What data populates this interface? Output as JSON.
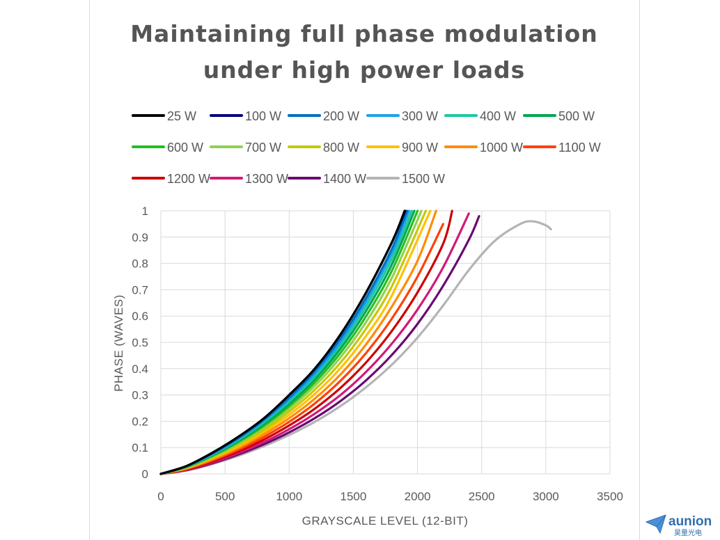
{
  "chart_data": {
    "type": "line",
    "title": [
      "Maintaining full phase modulation",
      "under high power loads"
    ],
    "xlabel": "GRAYSCALE LEVEL (12-BIT)",
    "ylabel": "PHASE (WAVES)",
    "xlim": [
      0,
      3500
    ],
    "ylim": [
      0,
      1
    ],
    "xticks": [
      0,
      500,
      1000,
      1500,
      2000,
      2500,
      3000,
      3500
    ],
    "yticks": [
      0,
      0.1,
      0.2,
      0.3,
      0.4,
      0.5,
      0.6,
      0.7,
      0.8,
      0.9,
      1
    ],
    "xtick_labels": [
      "0",
      "500",
      "1000",
      "1500",
      "2000",
      "2500",
      "3000",
      "3500"
    ],
    "ytick_labels": [
      "0",
      "0.1",
      "0.2",
      "0.3",
      "0.4",
      "0.5",
      "0.6",
      "0.7",
      "0.8",
      "0.9",
      "1"
    ],
    "grid": true,
    "legend_position": "top",
    "series": [
      {
        "name": "25 W",
        "color": "#000000",
        "x": [
          0,
          200,
          400,
          600,
          800,
          1000,
          1200,
          1400,
          1600,
          1800,
          1900
        ],
        "y": [
          0,
          0.03,
          0.08,
          0.14,
          0.21,
          0.3,
          0.4,
          0.53,
          0.69,
          0.88,
          1.0
        ]
      },
      {
        "name": "100 W",
        "color": "#00007f",
        "x": [
          0,
          200,
          400,
          600,
          800,
          1000,
          1200,
          1400,
          1600,
          1800,
          1905
        ],
        "y": [
          0,
          0.03,
          0.08,
          0.14,
          0.21,
          0.3,
          0.4,
          0.53,
          0.69,
          0.88,
          1.0
        ]
      },
      {
        "name": "200 W",
        "color": "#0070c0",
        "x": [
          0,
          200,
          400,
          600,
          800,
          1000,
          1200,
          1400,
          1600,
          1800,
          1920
        ],
        "y": [
          0,
          0.03,
          0.077,
          0.135,
          0.205,
          0.29,
          0.39,
          0.515,
          0.67,
          0.855,
          1.0
        ]
      },
      {
        "name": "300 W",
        "color": "#1aa3e8",
        "x": [
          0,
          200,
          400,
          600,
          800,
          1000,
          1200,
          1400,
          1600,
          1800,
          1935
        ],
        "y": [
          0,
          0.029,
          0.075,
          0.132,
          0.2,
          0.283,
          0.38,
          0.503,
          0.655,
          0.838,
          1.0
        ]
      },
      {
        "name": "400 W",
        "color": "#1dc8a0",
        "x": [
          0,
          200,
          400,
          600,
          800,
          1000,
          1200,
          1400,
          1600,
          1800,
          1955
        ],
        "y": [
          0,
          0.028,
          0.073,
          0.128,
          0.195,
          0.275,
          0.37,
          0.49,
          0.638,
          0.818,
          1.0
        ]
      },
      {
        "name": "500 W",
        "color": "#00a550",
        "x": [
          0,
          200,
          400,
          600,
          800,
          1000,
          1200,
          1400,
          1600,
          1800,
          1975
        ],
        "y": [
          0,
          0.027,
          0.07,
          0.124,
          0.189,
          0.267,
          0.36,
          0.476,
          0.62,
          0.796,
          1.0
        ]
      },
      {
        "name": "600 W",
        "color": "#22c01e",
        "x": [
          0,
          200,
          400,
          600,
          800,
          1000,
          1200,
          1400,
          1600,
          1800,
          2000
        ],
        "y": [
          0,
          0.026,
          0.068,
          0.12,
          0.182,
          0.258,
          0.348,
          0.46,
          0.6,
          0.772,
          1.0
        ]
      },
      {
        "name": "700 W",
        "color": "#92d050",
        "x": [
          0,
          200,
          400,
          600,
          800,
          1000,
          1200,
          1400,
          1600,
          1800,
          2030
        ],
        "y": [
          0,
          0.025,
          0.065,
          0.115,
          0.175,
          0.248,
          0.335,
          0.443,
          0.578,
          0.745,
          1.0
        ]
      },
      {
        "name": "800 W",
        "color": "#c8c800",
        "x": [
          0,
          200,
          400,
          600,
          800,
          1000,
          1200,
          1400,
          1600,
          1800,
          2065
        ],
        "y": [
          0,
          0.024,
          0.062,
          0.11,
          0.167,
          0.237,
          0.32,
          0.423,
          0.553,
          0.713,
          1.0
        ]
      },
      {
        "name": "900 W",
        "color": "#ffc000",
        "x": [
          0,
          200,
          400,
          600,
          800,
          1000,
          1200,
          1400,
          1600,
          1800,
          2100
        ],
        "y": [
          0,
          0.022,
          0.059,
          0.104,
          0.159,
          0.225,
          0.304,
          0.402,
          0.525,
          0.678,
          1.0
        ]
      },
      {
        "name": "1000 W",
        "color": "#ff8c00",
        "x": [
          0,
          200,
          400,
          600,
          800,
          1000,
          1200,
          1400,
          1600,
          1800,
          2000,
          2145
        ],
        "y": [
          0,
          0.021,
          0.055,
          0.098,
          0.15,
          0.212,
          0.286,
          0.378,
          0.493,
          0.636,
          0.81,
          1.0
        ]
      },
      {
        "name": "1100 W",
        "color": "#ff4000",
        "x": [
          0,
          200,
          400,
          600,
          800,
          1000,
          1200,
          1400,
          1600,
          1800,
          2000,
          2200
        ],
        "y": [
          0,
          0.019,
          0.051,
          0.091,
          0.14,
          0.198,
          0.268,
          0.354,
          0.46,
          0.59,
          0.75,
          0.95
        ]
      },
      {
        "name": "1200 W",
        "color": "#cc0000",
        "x": [
          0,
          200,
          400,
          600,
          800,
          1000,
          1200,
          1400,
          1600,
          1800,
          2000,
          2200,
          2270
        ],
        "y": [
          0,
          0.017,
          0.047,
          0.085,
          0.13,
          0.184,
          0.248,
          0.327,
          0.424,
          0.543,
          0.69,
          0.875,
          1.0
        ]
      },
      {
        "name": "1300 W",
        "color": "#d01a78",
        "x": [
          0,
          200,
          400,
          600,
          800,
          1000,
          1200,
          1400,
          1600,
          1800,
          2000,
          2200,
          2400
        ],
        "y": [
          0,
          0.015,
          0.043,
          0.078,
          0.12,
          0.17,
          0.229,
          0.3,
          0.388,
          0.495,
          0.625,
          0.785,
          0.99
        ]
      },
      {
        "name": "1400 W",
        "color": "#6a0a70",
        "x": [
          0,
          200,
          400,
          600,
          800,
          1000,
          1200,
          1400,
          1600,
          1800,
          2000,
          2200,
          2400,
          2480
        ],
        "y": [
          0,
          0.014,
          0.04,
          0.073,
          0.112,
          0.158,
          0.212,
          0.277,
          0.356,
          0.452,
          0.57,
          0.715,
          0.89,
          0.98
        ]
      },
      {
        "name": "1500 W",
        "color": "#b4b4b4",
        "x": [
          0,
          200,
          400,
          600,
          800,
          1000,
          1200,
          1400,
          1600,
          1800,
          2000,
          2200,
          2400,
          2600,
          2800,
          2900,
          3000,
          3040
        ],
        "y": [
          0,
          0.013,
          0.037,
          0.068,
          0.105,
          0.148,
          0.198,
          0.258,
          0.33,
          0.415,
          0.518,
          0.64,
          0.775,
          0.885,
          0.95,
          0.96,
          0.945,
          0.93
        ]
      }
    ]
  },
  "logo": {
    "name": "aunion",
    "subtext": "昊量光电"
  }
}
